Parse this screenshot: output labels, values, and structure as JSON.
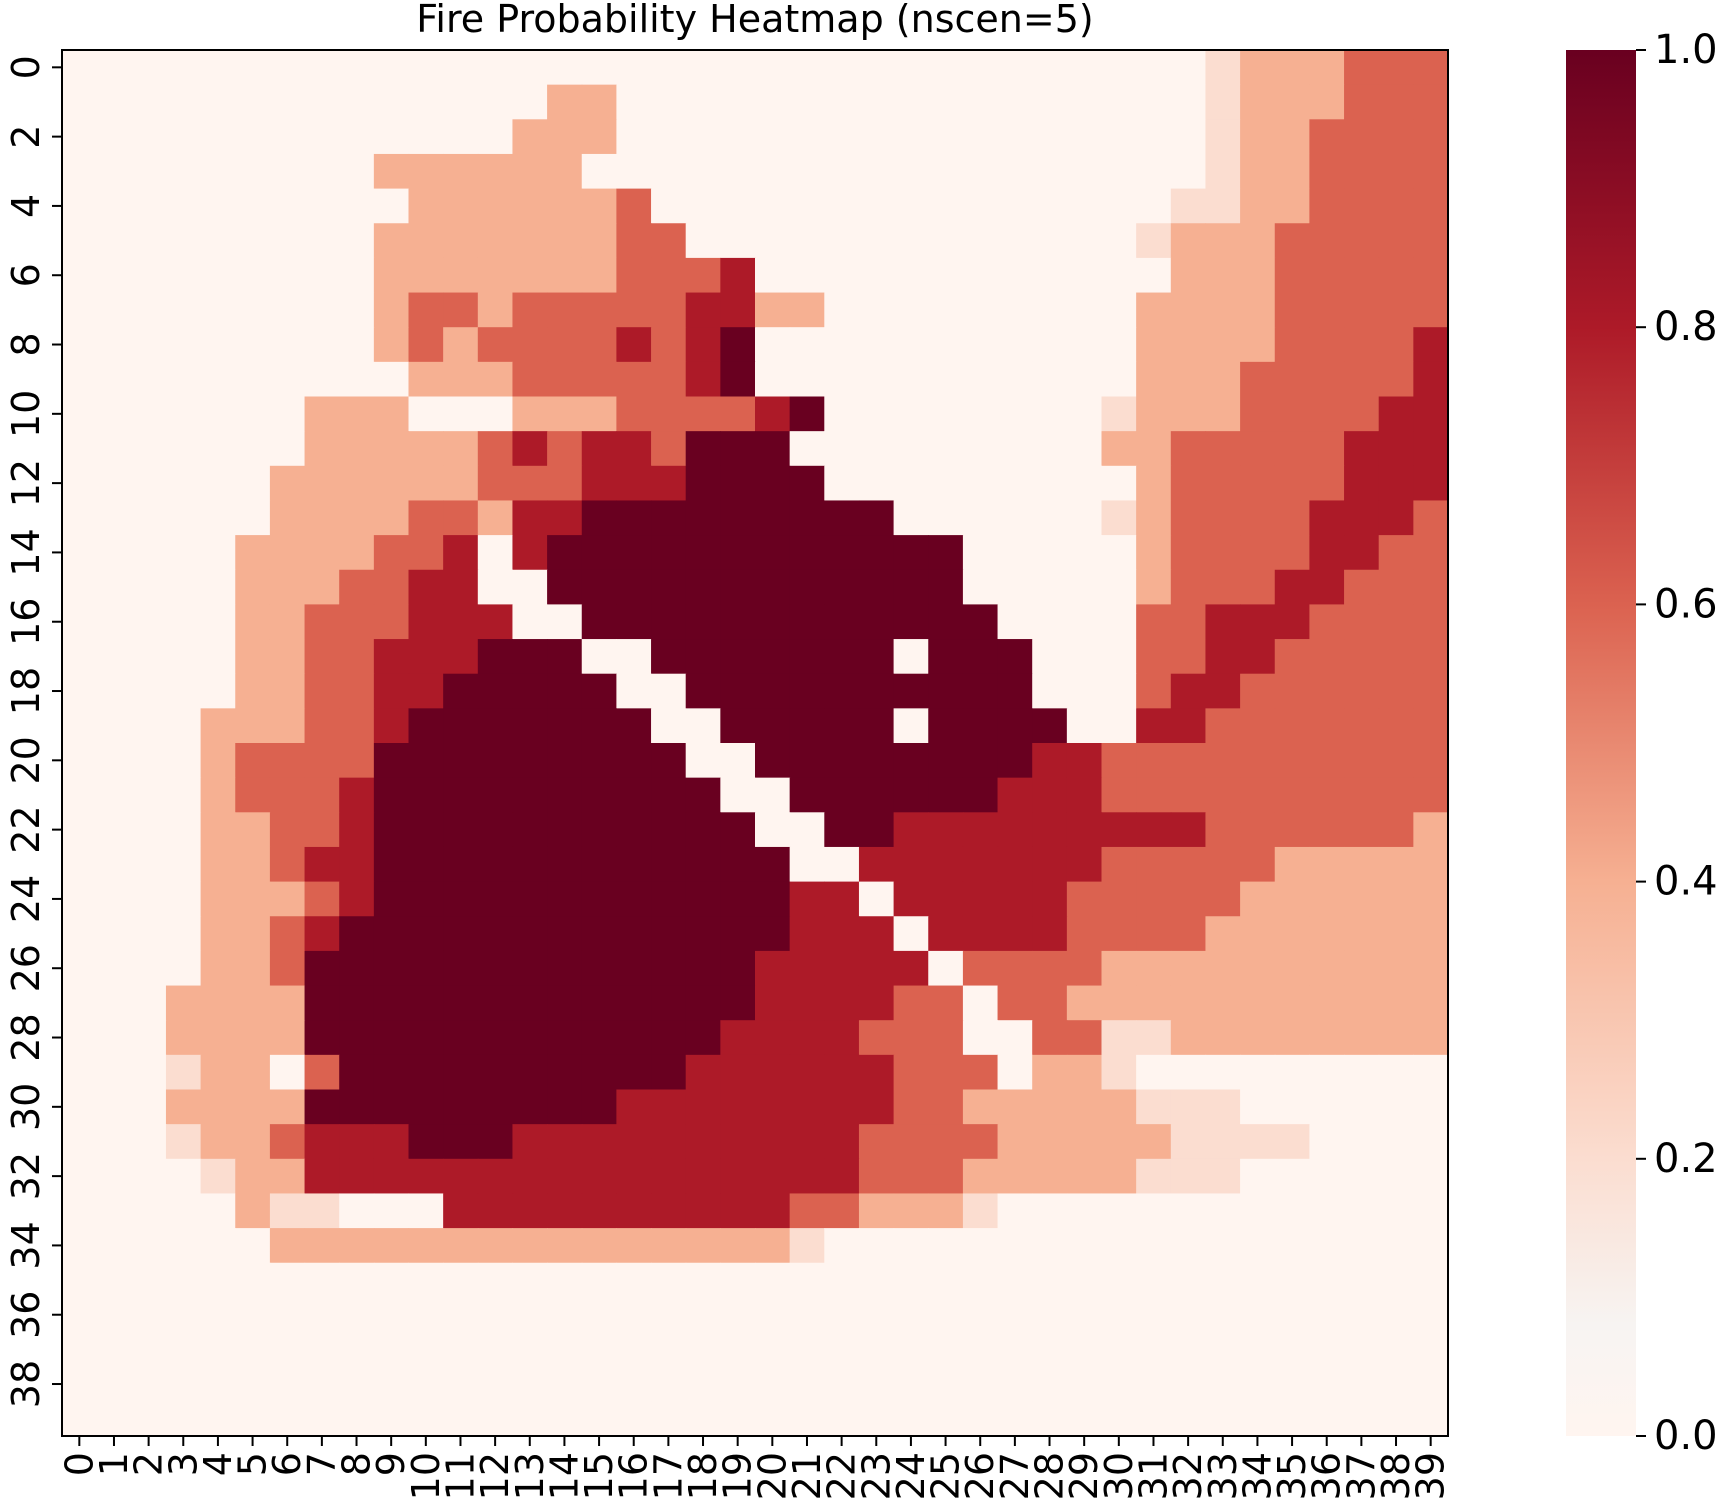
{
  "chart_data": {
    "type": "heatmap",
    "title": "Fire Probability Heatmap (nscen=5)",
    "xlabel": "",
    "ylabel": "",
    "colormap": "Reds",
    "vmin": 0.0,
    "vmax": 1.0,
    "colorbar_ticks": [
      "0.0",
      "0.2",
      "0.4",
      "0.6",
      "0.8",
      "1.0"
    ],
    "x_tick_labels": [
      "0",
      "1",
      "2",
      "3",
      "4",
      "5",
      "6",
      "7",
      "8",
      "9",
      "10",
      "11",
      "12",
      "13",
      "14",
      "15",
      "16",
      "17",
      "18",
      "19",
      "20",
      "21",
      "22",
      "23",
      "24",
      "25",
      "26",
      "27",
      "28",
      "29",
      "30",
      "31",
      "32",
      "33",
      "34",
      "35",
      "36",
      "37",
      "38",
      "39"
    ],
    "y_tick_labels": [
      "0",
      "2",
      "4",
      "6",
      "8",
      "10",
      "12",
      "14",
      "16",
      "18",
      "20",
      "22",
      "24",
      "26",
      "28",
      "30",
      "32",
      "34",
      "36",
      "38"
    ],
    "grid_size": [
      40,
      40
    ],
    "rows": [
      "0000000000000000000000000000000001222333",
      "0000000000000022000000000000000001222333",
      "0000000000000222000000000000000001223333",
      "0000000002222220000000000000000001223333",
      "0000000000222222300000000000000011223333",
      "0000000002222222330000000000000122233333",
      "0000000002222222333400000000000022233333",
      "0000000002332333334422000000000222233333",
      "0000000002323333434500000000000222233334",
      "0000000000222333334500000000000222333334",
      "0000000222000222333345000000001222333344",
      "0000000222223434435550000000002233333444",
      "0000002222223334445555000000000233333444",
      "0000002222332445555555550000001233334443",
      "0000022223340455555555555500000233334433",
      "0000022233440055555555555500000233344333",
      "0000022333444005555555555550000334443333",
      "0000022334445550055555550555000334433333",
      "0000022334455555005555555555000344333333",
      "0000222334555555500555550555500443333333",
      "0000233335555555550055555555443333333333",
      "0000233345555555555005555554443333333333",
      "0000223345555555555500554444444443333332",
      "0000223445555555555550044444443333322222",
      "0000222345555555555554404444433333222222",
      "0000223455555555555554440444433332222222",
      "0000223555555555555544444033332222222222",
      "0002222555555555555544443303322222222222",
      "0002222555555555555444433300331122222222",
      "0001220355555555554444443330221000000000",
      "0002222555555555444444443322222111000000",
      "0001223444555444444444433332222211110000",
      "0000122444444444444444433322222111000000",
      "0000021100044444444443322210000000000000",
      "0000002222222222222221000000000000000000",
      "0000000000000000000000000000000000000000",
      "0000000000000000000000000000000000000000",
      "0000000000000000000000000000000000000000",
      "0000000000000000000000000000000000000000",
      "0000000000000000000000000000000000000000"
    ],
    "level_values": [
      0.0,
      0.2,
      0.4,
      0.6,
      0.8,
      1.0
    ],
    "level_colors": [
      "#fff5f0",
      "#fbddd0",
      "#f6b092",
      "#db6250",
      "#ad1a28",
      "#690020"
    ],
    "exact_zero_color": "#ffffff"
  }
}
